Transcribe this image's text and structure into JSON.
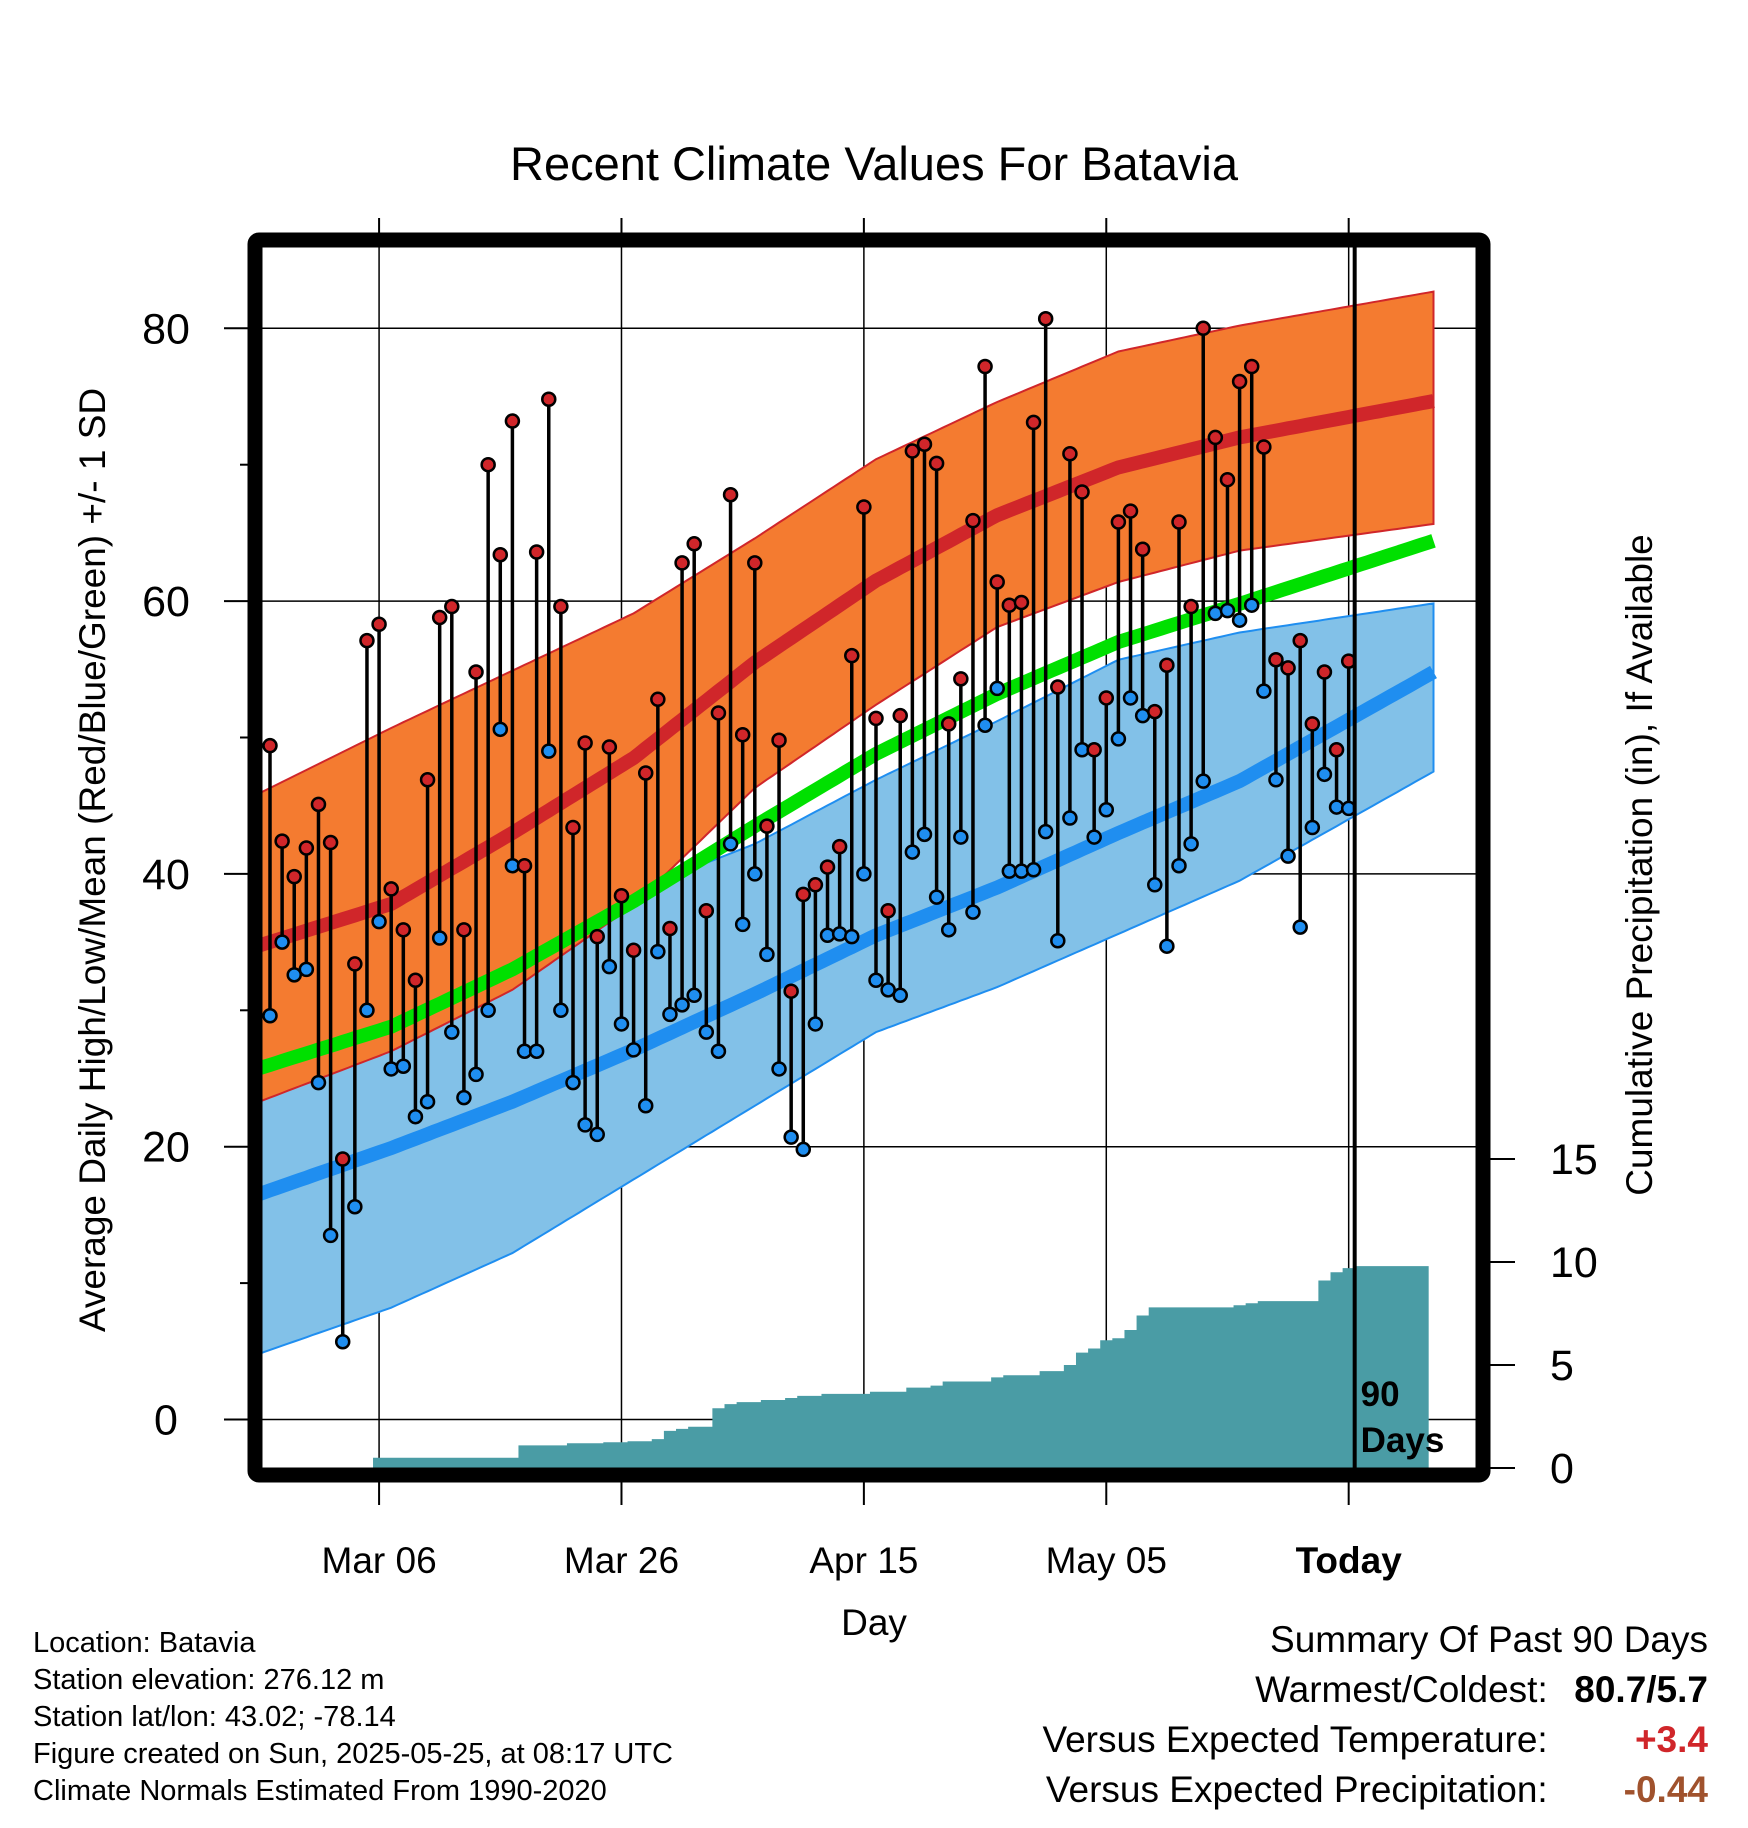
{
  "chart_data": {
    "type": "line",
    "title": "Recent Climate Values For Batavia",
    "xlabel": "Day",
    "ylabel": "Average Daily High/Low/Mean (Red/Blue/Green) +/- 1 SD",
    "y2label": "Cumulative Precipitation (in), If Available",
    "x_ticks": [
      "Mar 06",
      "Mar 26",
      "Apr 15",
      "May 05",
      "Today"
    ],
    "ylim": [
      -3.5,
      86
    ],
    "y_ticks": [
      0,
      20,
      40,
      60,
      80
    ],
    "y2lim": [
      0,
      30
    ],
    "y2_ticks": [
      0,
      5,
      10,
      15
    ],
    "grid": true,
    "marker_label": "90 Days",
    "days": [
      "Feb 25",
      "Feb 26",
      "Feb 27",
      "Feb 28",
      "Mar 01",
      "Mar 02",
      "Mar 03",
      "Mar 04",
      "Mar 05",
      "Mar 06",
      "Mar 07",
      "Mar 08",
      "Mar 09",
      "Mar 10",
      "Mar 11",
      "Mar 12",
      "Mar 13",
      "Mar 14",
      "Mar 15",
      "Mar 16",
      "Mar 17",
      "Mar 18",
      "Mar 19",
      "Mar 20",
      "Mar 21",
      "Mar 22",
      "Mar 23",
      "Mar 24",
      "Mar 25",
      "Mar 26",
      "Mar 27",
      "Mar 28",
      "Mar 29",
      "Mar 30",
      "Mar 31",
      "Apr 01",
      "Apr 02",
      "Apr 03",
      "Apr 04",
      "Apr 05",
      "Apr 06",
      "Apr 07",
      "Apr 08",
      "Apr 09",
      "Apr 10",
      "Apr 11",
      "Apr 12",
      "Apr 13",
      "Apr 14",
      "Apr 15",
      "Apr 16",
      "Apr 17",
      "Apr 18",
      "Apr 19",
      "Apr 20",
      "Apr 21",
      "Apr 22",
      "Apr 23",
      "Apr 24",
      "Apr 25",
      "Apr 26",
      "Apr 27",
      "Apr 28",
      "Apr 29",
      "Apr 30",
      "May 01",
      "May 02",
      "May 03",
      "May 04",
      "May 05",
      "May 06",
      "May 07",
      "May 08",
      "May 09",
      "May 10",
      "May 11",
      "May 12",
      "May 13",
      "May 14",
      "May 15",
      "May 16",
      "May 17",
      "May 18",
      "May 19",
      "May 20",
      "May 21",
      "May 22",
      "May 23",
      "May 24",
      "May 25"
    ],
    "series": [
      {
        "name": "High",
        "values": [
          49.4,
          42.4,
          39.8,
          41.9,
          45.1,
          42.3,
          19.1,
          33.4,
          57.1,
          58.3,
          38.9,
          35.9,
          32.2,
          46.9,
          58.8,
          59.6,
          35.9,
          54.8,
          70.0,
          63.4,
          73.2,
          40.6,
          63.6,
          74.8,
          59.6,
          43.4,
          49.6,
          35.4,
          49.3,
          38.4,
          34.4,
          47.4,
          52.8,
          36.0,
          62.8,
          64.2,
          37.3,
          51.8,
          67.8,
          50.2,
          62.8,
          43.5,
          49.8,
          31.4,
          38.5,
          39.2,
          40.5,
          42.0,
          56.0,
          66.9,
          51.4,
          37.3,
          51.6,
          71.0,
          71.5,
          70.1,
          51.0,
          54.3,
          65.9,
          77.2,
          61.4,
          59.7,
          59.9,
          73.1,
          80.7,
          53.7,
          70.8,
          68.0,
          49.1,
          52.9,
          65.8,
          66.6,
          63.8,
          51.9,
          55.3,
          65.8,
          59.6,
          80.0,
          72.0,
          68.9,
          76.1,
          77.2,
          71.3,
          55.7,
          55.1,
          57.1,
          51.0,
          54.8,
          49.1,
          55.6
        ]
      },
      {
        "name": "Low",
        "values": [
          29.6,
          35.0,
          32.6,
          33.0,
          24.7,
          13.5,
          5.7,
          15.6,
          30.0,
          36.5,
          25.7,
          25.9,
          22.2,
          23.3,
          35.3,
          28.4,
          23.6,
          25.3,
          30.0,
          50.6,
          40.6,
          27.0,
          27.0,
          49.0,
          30.0,
          24.7,
          21.6,
          20.9,
          33.2,
          29.0,
          27.1,
          23.0,
          34.3,
          29.7,
          30.4,
          31.1,
          28.4,
          27.0,
          42.2,
          36.3,
          40.0,
          34.1,
          25.7,
          20.7,
          19.8,
          29.0,
          35.5,
          35.6,
          35.4,
          40.0,
          32.2,
          31.5,
          31.1,
          41.6,
          42.9,
          38.3,
          35.9,
          42.7,
          37.2,
          50.9,
          53.6,
          40.2,
          40.2,
          40.3,
          43.1,
          35.1,
          44.1,
          49.1,
          42.7,
          44.7,
          49.9,
          52.9,
          51.6,
          39.2,
          34.7,
          40.6,
          42.2,
          46.8,
          59.1,
          59.3,
          58.6,
          59.7,
          53.4,
          46.9,
          41.3,
          36.1,
          43.4,
          47.3,
          44.9,
          44.8
        ]
      }
    ],
    "normal_bands": {
      "day_index": [
        0,
        10,
        20,
        30,
        40,
        50,
        60,
        70,
        80,
        89
      ],
      "high_mean": [
        35.0,
        37.8,
        43.0,
        48.5,
        55.5,
        61.5,
        66.3,
        69.8,
        72.0,
        73.5
      ],
      "high_upper": [
        46.3,
        50.7,
        54.9,
        59.1,
        64.6,
        70.4,
        74.6,
        78.3,
        80.2,
        81.6
      ],
      "high_lower": [
        23.6,
        27.0,
        31.5,
        37.7,
        46.3,
        52.4,
        58.1,
        61.4,
        63.7,
        64.8
      ],
      "low_mean": [
        16.8,
        19.9,
        23.3,
        27.1,
        31.2,
        35.5,
        39.0,
        43.0,
        46.8,
        51.3
      ],
      "low_upper": [
        29.3,
        30.9,
        34.2,
        38.7,
        42.2,
        46.9,
        51.2,
        55.7,
        57.7,
        58.9
      ],
      "low_lower": [
        5.1,
        8.2,
        12.2,
        17.6,
        23.0,
        28.4,
        31.7,
        35.6,
        39.5,
        44.0
      ],
      "mean_mean": [
        26.0,
        28.8,
        33.0,
        38.0,
        43.5,
        48.8,
        53.2,
        57.0,
        59.8,
        62.4
      ]
    },
    "cumulative_precip": [
      0,
      0,
      0,
      0,
      0,
      0,
      0,
      0,
      0,
      0.5,
      0.5,
      0.5,
      0.5,
      0.5,
      0.5,
      0.5,
      0.5,
      0.5,
      0.5,
      0.5,
      0.5,
      1.1,
      1.1,
      1.1,
      1.1,
      1.2,
      1.2,
      1.2,
      1.25,
      1.25,
      1.3,
      1.3,
      1.4,
      1.8,
      1.9,
      2.0,
      2.0,
      2.9,
      3.1,
      3.2,
      3.2,
      3.3,
      3.3,
      3.4,
      3.5,
      3.5,
      3.6,
      3.6,
      3.6,
      3.6,
      3.7,
      3.7,
      3.7,
      3.9,
      3.9,
      4.0,
      4.2,
      4.2,
      4.2,
      4.2,
      4.4,
      4.5,
      4.5,
      4.5,
      4.7,
      4.7,
      5.0,
      5.6,
      5.8,
      6.2,
      6.3,
      6.7,
      7.4,
      7.8,
      7.8,
      7.8,
      7.8,
      7.8,
      7.8,
      7.8,
      7.9,
      8.0,
      8.1,
      8.1,
      8.1,
      8.1,
      8.1,
      9.1,
      9.5,
      9.7,
      9.8,
      9.8,
      9.8,
      9.8
    ],
    "colors": {
      "high_band": "#f47b30",
      "high_line": "#d0262a",
      "low_band": "#82c1e8",
      "low_line": "#1f8ef0",
      "mean_line": "#00e000",
      "precip": "#4a9ca5",
      "high_marker": "#d0262a",
      "low_marker": "#1f8ef0"
    }
  },
  "info": {
    "location": "Location: Batavia",
    "elevation": "Station elevation: 276.12 m",
    "latlon": "Station lat/lon: 43.02; -78.14",
    "created": "Figure created on Sun, 2025-05-25, at 08:17 UTC",
    "normals": "Climate Normals Estimated From 1990-2020"
  },
  "summary": {
    "heading": "Summary Of Past 90 Days",
    "warm_cold_label": "Warmest/Coldest:",
    "warm_cold_value": "80.7/5.7",
    "temp_label": "Versus Expected Temperature:",
    "temp_value": "+3.4",
    "temp_color": "#d0262a",
    "precip_label": "Versus Expected Precipitation:",
    "precip_value": "-0.44",
    "precip_color": "#a0522d"
  }
}
